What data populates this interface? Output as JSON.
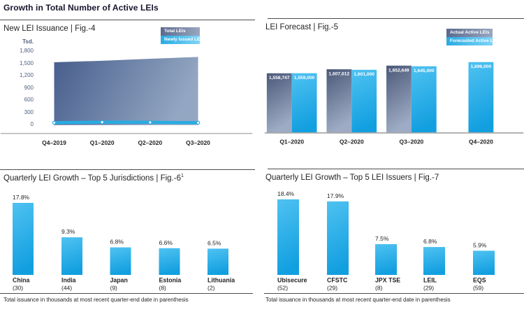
{
  "page_title": "Growth in Total Number of Active LEIs",
  "footnote": "Total issuance in thousands at most recent quarter-end date in parenthesis",
  "colors": {
    "accent_blue": "#29abe2",
    "blue_light": "#4fc2f1",
    "blue_deep": "#129fe0",
    "slate_dark": "#475e8c",
    "slate_light": "#93a6c2",
    "text_dark": "#231f20",
    "tick_slate": "#4f6080",
    "axis_gray": "#b5b5b5",
    "divider_gray": "#4d4d4d"
  },
  "chart_data": [
    {
      "id": "fig4",
      "type": "area",
      "title": "New LEI Issuance | Fig.-4",
      "unit_label": "Tsd.",
      "x_labels": [
        "Q4–2019",
        "Q1–2020",
        "Q2–2020",
        "Q3–2020"
      ],
      "y_ticks": [
        "1,800",
        "1,500",
        "1,200",
        "900",
        "600",
        "300",
        "0"
      ],
      "ylim": [
        0,
        1800
      ],
      "grid": false,
      "legend_position": "top-right",
      "series": [
        {
          "name": "Total LEIs",
          "type": "area",
          "values": [
            1520,
            1559,
            1608,
            1653
          ]
        },
        {
          "name": "Newly Issued LEIs",
          "type": "line",
          "values": [
            33,
            46,
            41,
            33
          ]
        }
      ]
    },
    {
      "id": "fig5",
      "type": "bar",
      "title": "LEI Forecast | Fig.-5",
      "categories": [
        "Q1–2020",
        "Q2–2020",
        "Q3–2020",
        "Q4–2020"
      ],
      "ylim": [
        834000,
        1730000
      ],
      "axis_truncated": true,
      "grid": false,
      "legend_position": "top-right",
      "series": [
        {
          "name": "Actual Active LEIs",
          "values": [
            1558747,
            1607612,
            1652649,
            null
          ],
          "value_labels": [
            "1,558,747",
            "1,607,612",
            "1,652,649",
            null
          ]
        },
        {
          "name": "Forecasted Active LEIs",
          "values": [
            1559000,
            1601000,
            1645000,
            1696000
          ],
          "value_labels": [
            "1,559,000",
            "1,601,000",
            "1,645,000",
            "1,696,000"
          ]
        }
      ]
    },
    {
      "id": "fig6",
      "type": "bar",
      "title": "Quarterly LEI Growth – Top 5 Jurisdictions | Fig.-6",
      "title_superscript": "1",
      "categories": [
        "China",
        "India",
        "Japan",
        "Estonia",
        "Lithuania"
      ],
      "category_sublabels": [
        "(30)",
        "(44)",
        "(9)",
        "(8)",
        "(2)"
      ],
      "values": [
        17.8,
        9.3,
        6.8,
        6.6,
        6.5
      ],
      "value_labels": [
        "17.8%",
        "9.3%",
        "6.8%",
        "6.6%",
        "6.5%"
      ],
      "ylim": [
        0,
        20
      ],
      "grid": false
    },
    {
      "id": "fig7",
      "type": "bar",
      "title": "Quarterly LEI Growth – Top 5 LEI Issuers | Fig.-7",
      "categories": [
        "Ubisecure",
        "CFSTC",
        "JPX TSE",
        "LEIL",
        "EQS"
      ],
      "category_sublabels": [
        "(52)",
        "(29)",
        "(8)",
        "(29)",
        "(59)"
      ],
      "values": [
        18.4,
        17.9,
        7.5,
        6.8,
        5.9
      ],
      "value_labels": [
        "18.4%",
        "17.9%",
        "7.5%",
        "6.8%",
        "5.9%"
      ],
      "ylim": [
        0,
        20
      ],
      "grid": false
    }
  ]
}
